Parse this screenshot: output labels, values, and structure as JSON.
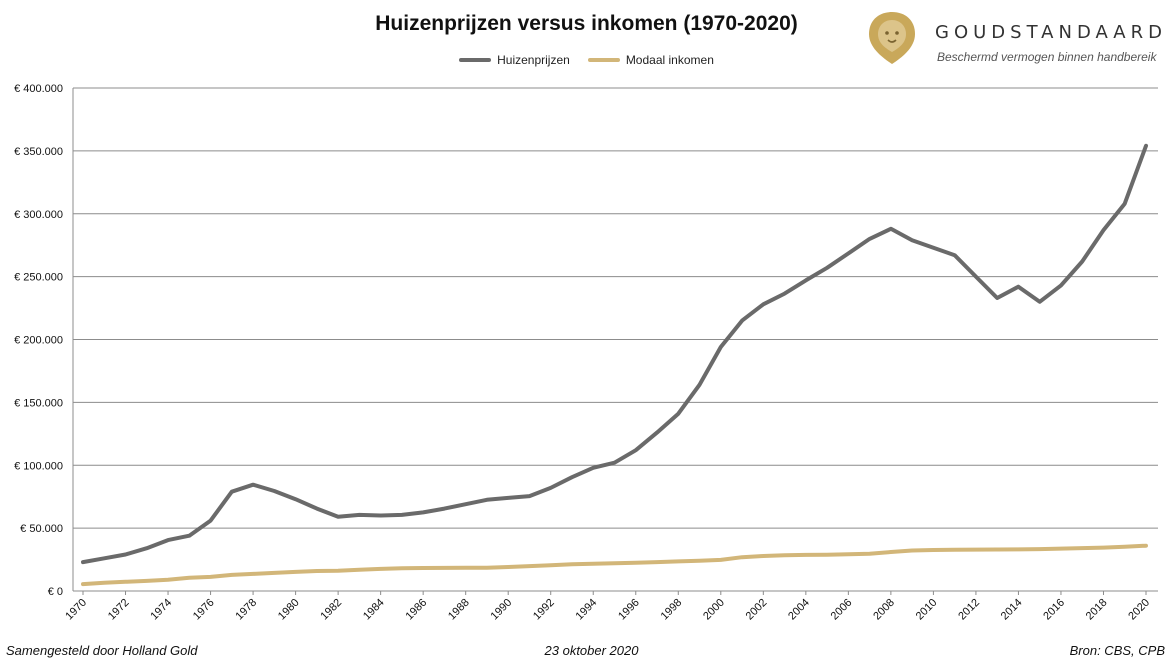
{
  "header": {
    "title": "Huizenprijzen versus inkomen (1970-2020)"
  },
  "brand": {
    "name": "GOUDSTANDAARD",
    "tagline": "Beschermd vermogen binnen handbereik",
    "logo_icon": "lion-shield-icon",
    "logo_color": "#c9a85a"
  },
  "footer": {
    "left": "Samengesteld door Holland Gold",
    "center": "23 oktober 2020",
    "right": "Bron: CBS, CPB"
  },
  "chart_data": {
    "type": "line",
    "title": "Huizenprijzen versus inkomen (1970-2020)",
    "xlabel": "",
    "ylabel": "",
    "x": [
      1970,
      1971,
      1972,
      1973,
      1974,
      1975,
      1976,
      1977,
      1978,
      1979,
      1980,
      1981,
      1982,
      1983,
      1984,
      1985,
      1986,
      1987,
      1988,
      1989,
      1990,
      1991,
      1992,
      1993,
      1994,
      1995,
      1996,
      1997,
      1998,
      1999,
      2000,
      2001,
      2002,
      2003,
      2004,
      2005,
      2006,
      2007,
      2008,
      2009,
      2010,
      2011,
      2012,
      2013,
      2014,
      2015,
      2016,
      2017,
      2018,
      2019,
      2020
    ],
    "x_tick_labels": [
      "1970",
      "1972",
      "1974",
      "1976",
      "1978",
      "1980",
      "1982",
      "1984",
      "1986",
      "1988",
      "1990",
      "1992",
      "1994",
      "1996",
      "1998",
      "2000",
      "2002",
      "2004",
      "2006",
      "2008",
      "2010",
      "2012",
      "2014",
      "2016",
      "2018",
      "2020"
    ],
    "ylim": [
      0,
      400000
    ],
    "y_tick_labels": [
      "€ 0",
      "€ 50.000",
      "€ 100.000",
      "€ 150.000",
      "€ 200.000",
      "€ 250.000",
      "€ 300.000",
      "€ 350.000",
      "€ 400.000"
    ],
    "grid": true,
    "legend_position": "top-center",
    "series": [
      {
        "name": "Huizenprijzen",
        "color": "#6a6a6a",
        "values": [
          23000,
          26000,
          29000,
          34000,
          40500,
          44000,
          56000,
          79000,
          84500,
          79500,
          73000,
          65500,
          59000,
          60500,
          60000,
          60500,
          62500,
          65500,
          69000,
          72500,
          74000,
          75500,
          82000,
          90500,
          98000,
          102000,
          112000,
          126000,
          141000,
          164000,
          194000,
          215000,
          228000,
          236500,
          247000,
          257000,
          268500,
          280000,
          288000,
          279000,
          273000,
          267000,
          250000,
          233000,
          242000,
          230000,
          243000,
          262000,
          287000,
          308000,
          354000
        ]
      },
      {
        "name": "Modaal inkomen",
        "color": "#d2b679",
        "values": [
          5500,
          6500,
          7300,
          8000,
          8900,
          10500,
          11200,
          12800,
          13600,
          14400,
          15200,
          15900,
          16100,
          16900,
          17600,
          18100,
          18300,
          18400,
          18500,
          18500,
          19100,
          19800,
          20400,
          21200,
          21700,
          22100,
          22500,
          23000,
          23500,
          24000,
          24700,
          26900,
          27800,
          28400,
          28700,
          28900,
          29200,
          29600,
          31000,
          32200,
          32600,
          32800,
          32900,
          33000,
          33100,
          33300,
          33700,
          34100,
          34500,
          35200,
          36000
        ]
      }
    ]
  }
}
